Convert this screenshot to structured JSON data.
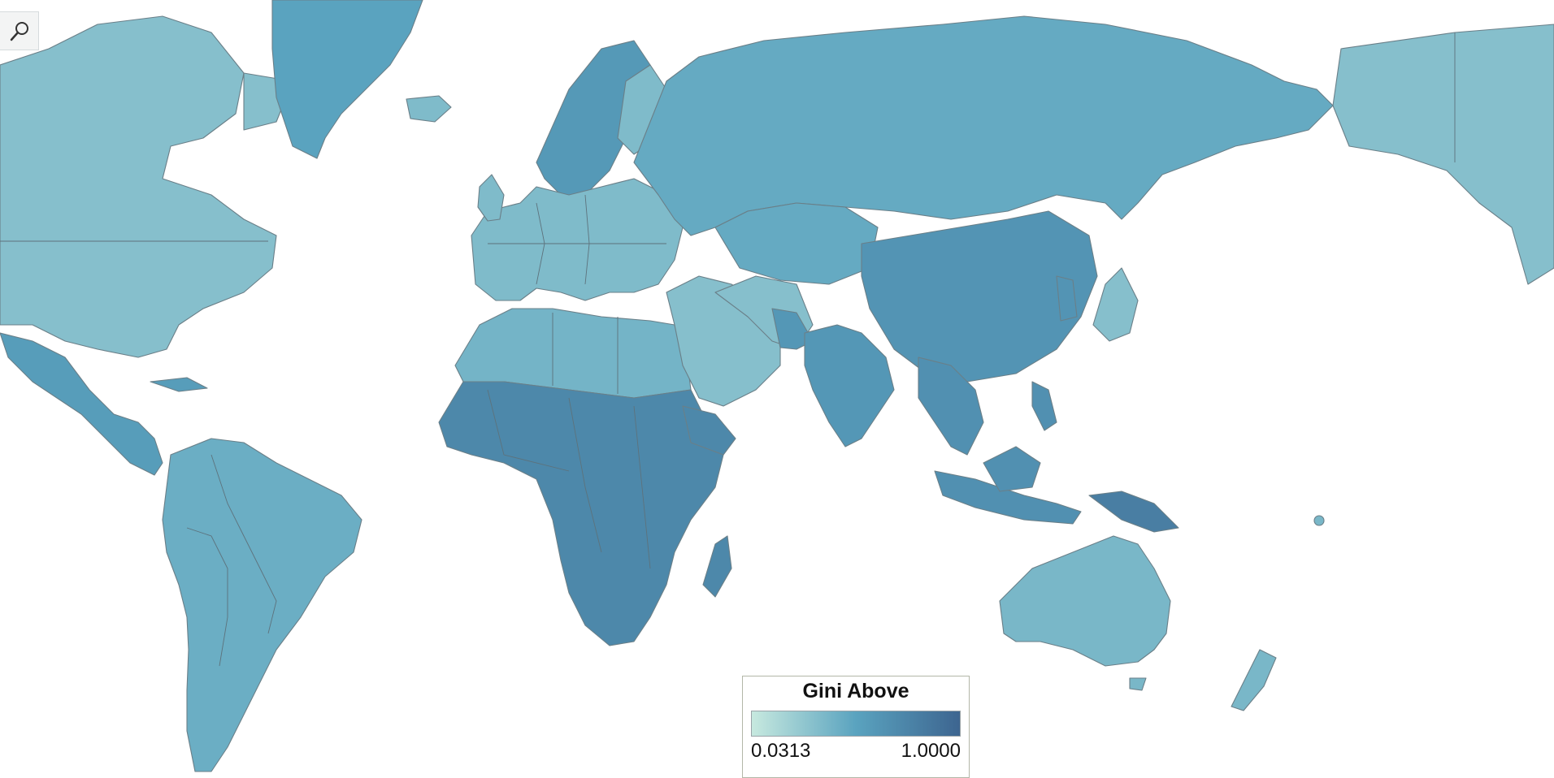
{
  "map": {
    "projection": "web-mercator",
    "color_scale": [
      "#c7e9df",
      "#5aa3bf",
      "#3d6590"
    ],
    "regions": [
      {
        "name": "north-america",
        "value": 0.3
      },
      {
        "name": "central-america",
        "value": 0.55
      },
      {
        "name": "south-america",
        "value": 0.42
      },
      {
        "name": "greenland",
        "value": 0.5
      },
      {
        "name": "europe",
        "value": 0.33
      },
      {
        "name": "scandinavia",
        "value": 0.58
      },
      {
        "name": "russia",
        "value": 0.45
      },
      {
        "name": "north-africa",
        "value": 0.38
      },
      {
        "name": "sub-saharan-africa",
        "value": 0.72
      },
      {
        "name": "middle-east",
        "value": 0.3
      },
      {
        "name": "south-asia",
        "value": 0.6
      },
      {
        "name": "east-asia",
        "value": 0.62
      },
      {
        "name": "southeast-asia",
        "value": 0.65
      },
      {
        "name": "oceania",
        "value": 0.36
      },
      {
        "name": "new-guinea",
        "value": 0.8
      }
    ]
  },
  "legend": {
    "title": "Gini Above",
    "min_label": "0.0313",
    "max_label": "1.0000"
  },
  "toolbar": {
    "search_icon": "magnifier-icon"
  }
}
